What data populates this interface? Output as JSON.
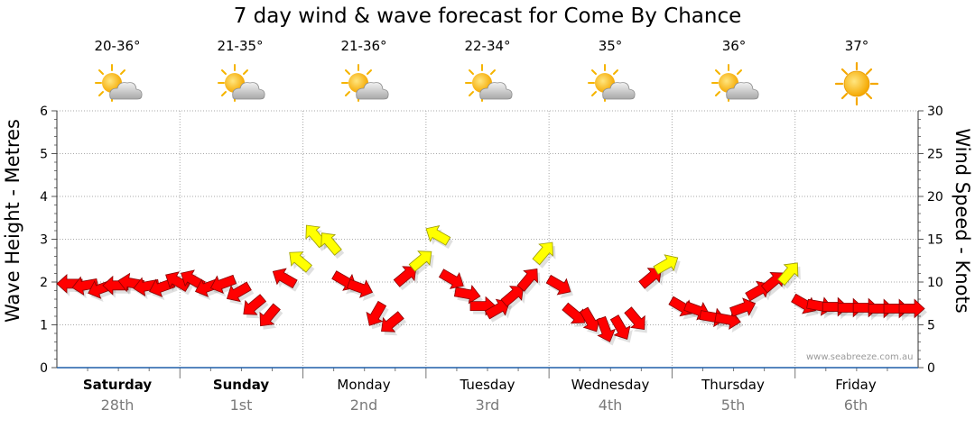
{
  "chart_data": {
    "type": "line",
    "title": "7 day wind & wave forecast for Come By Chance",
    "ylabel_left": "Wave Height - Metres",
    "ylabel_right": "Wind Speed - Knots",
    "ylim_left": [
      0,
      6
    ],
    "ylim_right": [
      0,
      30
    ],
    "yticks_left": [
      "0",
      "1",
      "2",
      "3",
      "4",
      "5",
      "6"
    ],
    "yticks_right": [
      "0",
      "5",
      "10",
      "15",
      "20",
      "25",
      "30"
    ],
    "credit": "www.seabreeze.com.au",
    "forecast": [
      {
        "temp": "20-36°",
        "icon": "partly-cloudy-icon"
      },
      {
        "temp": "21-35°",
        "icon": "partly-cloudy-icon"
      },
      {
        "temp": "21-36°",
        "icon": "partly-cloudy-icon"
      },
      {
        "temp": "22-34°",
        "icon": "partly-cloudy-icon"
      },
      {
        "temp": "35°",
        "icon": "partly-cloudy-icon"
      },
      {
        "temp": "36°",
        "icon": "partly-cloudy-icon"
      },
      {
        "temp": "37°",
        "icon": "sunny-icon"
      }
    ],
    "days": [
      {
        "name": "Saturday",
        "date": "28th"
      },
      {
        "name": "Sunday",
        "date": "1st"
      },
      {
        "name": "Monday",
        "date": "2nd"
      },
      {
        "name": "Tuesday",
        "date": "3rd"
      },
      {
        "name": "Wednesday",
        "date": "4th"
      },
      {
        "name": "Thursday",
        "date": "5th"
      },
      {
        "name": "Friday",
        "date": "6th"
      }
    ],
    "series": [
      {
        "name": "Wind speed (knots)",
        "x_hours": [
          0,
          3,
          6,
          9,
          12,
          15,
          18,
          21,
          24,
          27,
          30,
          33,
          36,
          39,
          42,
          45,
          48,
          51,
          54,
          57,
          60,
          63,
          66,
          69,
          72,
          75,
          78,
          81,
          84,
          87,
          90,
          93,
          96,
          99,
          102,
          105,
          108,
          111,
          114,
          117,
          120,
          123,
          126,
          129,
          132,
          135,
          138,
          141,
          144,
          147,
          150,
          153,
          156,
          159,
          162,
          165
        ],
        "values": [
          9.8,
          9.6,
          9.2,
          9.6,
          9.9,
          9.5,
          9.4,
          10.1,
          10.3,
          9.4,
          9.8,
          8.8,
          7.2,
          6.0,
          10.5,
          12.5,
          15.5,
          14.6,
          10.1,
          9.3,
          6.2,
          5.2,
          10.8,
          12.6,
          15.5,
          10.3,
          8.6,
          7.2,
          6.9,
          8.5,
          10.4,
          13.5,
          9.6,
          6.2,
          5.5,
          4.4,
          4.6,
          5.6,
          10.6,
          12.1,
          7.1,
          6.7,
          5.9,
          5.6,
          7.0,
          9.0,
          10.1,
          11.1,
          7.4,
          7.2,
          7.1,
          7.0,
          7.0,
          6.9,
          6.9,
          6.9
        ]
      },
      {
        "name": "Wind direction (deg, arrow points toward)",
        "values": [
          270,
          260,
          250,
          270,
          280,
          260,
          250,
          300,
          300,
          250,
          250,
          240,
          230,
          220,
          300,
          310,
          320,
          320,
          120,
          110,
          210,
          230,
          50,
          50,
          300,
          120,
          100,
          90,
          60,
          50,
          40,
          40,
          120,
          130,
          150,
          160,
          150,
          140,
          50,
          60,
          120,
          110,
          100,
          100,
          70,
          60,
          50,
          40,
          120,
          100,
          90,
          90,
          90,
          90,
          90,
          90
        ]
      }
    ]
  }
}
